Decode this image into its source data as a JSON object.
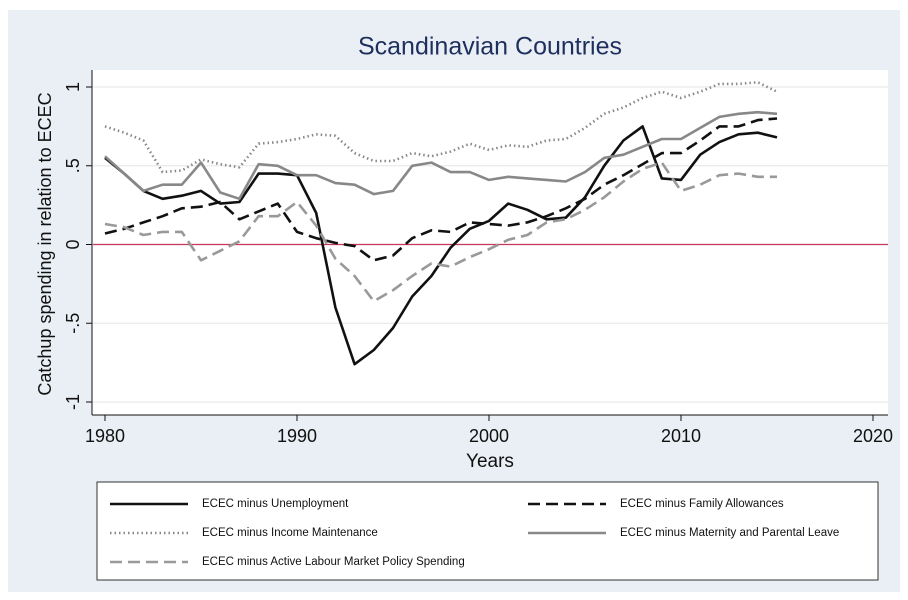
{
  "chart_data": {
    "type": "line",
    "title": "Scandinavian Countries",
    "x_label": "Years",
    "y_label": "Catchup spending in relation to ECEC",
    "x": [
      1980,
      1981,
      1982,
      1983,
      1984,
      1985,
      1986,
      1987,
      1988,
      1989,
      1990,
      1991,
      1992,
      1993,
      1994,
      1995,
      1996,
      1997,
      1998,
      1999,
      2000,
      2001,
      2002,
      2003,
      2004,
      2005,
      2006,
      2007,
      2008,
      2009,
      2010,
      2011,
      2012,
      2013,
      2014,
      2015
    ],
    "series": [
      {
        "name": "ECEC minus Unemployment",
        "color": "#111111",
        "dash": "solid",
        "values": [
          0.55,
          0.45,
          0.34,
          0.29,
          0.31,
          0.34,
          0.26,
          0.27,
          0.45,
          0.45,
          0.44,
          0.2,
          -0.4,
          -0.76,
          -0.67,
          -0.53,
          -0.33,
          -0.2,
          -0.02,
          0.1,
          0.15,
          0.26,
          0.22,
          0.16,
          0.17,
          0.3,
          0.5,
          0.66,
          0.75,
          0.42,
          0.41,
          0.57,
          0.65,
          0.7,
          0.71,
          0.68
        ]
      },
      {
        "name": "ECEC minus Family Allowances",
        "color": "#111111",
        "dash": "dash",
        "values": [
          0.07,
          0.1,
          0.14,
          0.18,
          0.23,
          0.24,
          0.27,
          0.16,
          0.21,
          0.26,
          0.08,
          0.04,
          0.01,
          -0.01,
          -0.1,
          -0.07,
          0.04,
          0.09,
          0.08,
          0.14,
          0.13,
          0.12,
          0.14,
          0.18,
          0.23,
          0.29,
          0.38,
          0.44,
          0.51,
          0.58,
          0.58,
          0.66,
          0.75,
          0.75,
          0.79,
          0.8
        ]
      },
      {
        "name": "ECEC minus Income Maintenance",
        "color": "#888888",
        "dash": "dot",
        "values": [
          0.75,
          0.71,
          0.66,
          0.46,
          0.47,
          0.54,
          0.51,
          0.49,
          0.64,
          0.65,
          0.67,
          0.7,
          0.69,
          0.58,
          0.53,
          0.53,
          0.58,
          0.56,
          0.59,
          0.64,
          0.6,
          0.63,
          0.62,
          0.66,
          0.67,
          0.74,
          0.83,
          0.87,
          0.93,
          0.97,
          0.93,
          0.97,
          1.02,
          1.02,
          1.03,
          0.97
        ]
      },
      {
        "name": "ECEC minus Maternity and Parental Leave",
        "color": "#888888",
        "dash": "solid",
        "values": [
          0.56,
          0.45,
          0.34,
          0.38,
          0.38,
          0.52,
          0.33,
          0.29,
          0.51,
          0.5,
          0.44,
          0.44,
          0.39,
          0.38,
          0.32,
          0.34,
          0.5,
          0.52,
          0.46,
          0.46,
          0.41,
          0.43,
          0.42,
          0.41,
          0.4,
          0.46,
          0.55,
          0.57,
          0.62,
          0.67,
          0.67,
          0.74,
          0.81,
          0.83,
          0.84,
          0.83
        ]
      },
      {
        "name": "ECEC minus Active Labour Market Policy Spending",
        "color": "#999999",
        "dash": "dash",
        "values": [
          0.13,
          0.11,
          0.06,
          0.08,
          0.08,
          -0.1,
          -0.04,
          0.02,
          0.18,
          0.18,
          0.27,
          0.12,
          -0.09,
          -0.2,
          -0.36,
          -0.29,
          -0.2,
          -0.12,
          -0.14,
          -0.08,
          -0.03,
          0.03,
          0.06,
          0.14,
          0.16,
          0.22,
          0.3,
          0.4,
          0.48,
          0.52,
          0.34,
          0.38,
          0.44,
          0.45,
          0.43,
          0.43
        ]
      }
    ],
    "xlim": [
      1980,
      2020
    ],
    "xticks": [
      1980,
      1990,
      2000,
      2010,
      2020
    ],
    "ylim": [
      -1,
      1
    ],
    "yticks": [
      -1,
      {
        "value": -0.5,
        "label": "-.5"
      },
      0,
      {
        "value": 0.5,
        "label": ".5"
      },
      1
    ],
    "grid": true,
    "reference_line": {
      "value": 0,
      "color": "#c8385a"
    },
    "legend": "bottom"
  }
}
